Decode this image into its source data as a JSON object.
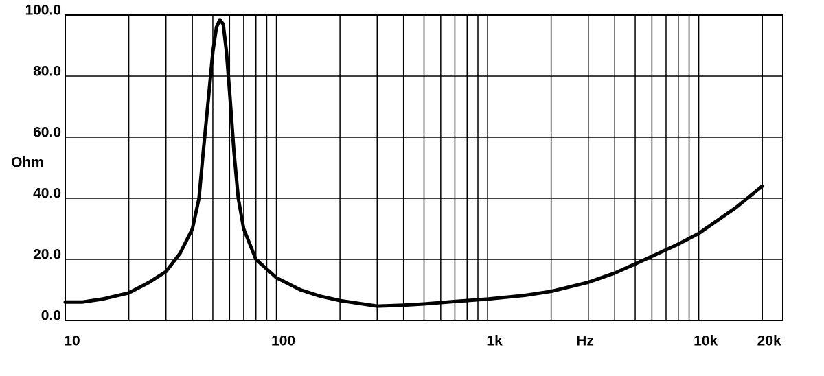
{
  "chart_data": {
    "type": "line",
    "x_label": "Hz",
    "y_label": "Ohm",
    "log_x": true,
    "grid": true,
    "color": "#000000",
    "xlim": [
      10,
      25000
    ],
    "ylim": [
      0,
      100
    ],
    "xticks": [
      {
        "value": 10,
        "label": "10"
      },
      {
        "value": 100,
        "label": "100"
      },
      {
        "value": 1000,
        "label": "1k"
      },
      {
        "value": 10000,
        "label": "10k"
      },
      {
        "value": 20000,
        "label": "20k"
      }
    ],
    "xgrid": [
      20,
      30,
      40,
      50,
      60,
      70,
      80,
      90,
      100,
      200,
      300,
      400,
      500,
      600,
      700,
      800,
      900,
      1000,
      2000,
      3000,
      4000,
      5000,
      6000,
      7000,
      8000,
      9000,
      10000,
      20000
    ],
    "yticks": [
      {
        "value": 0,
        "label": "0.0"
      },
      {
        "value": 20,
        "label": "20.0"
      },
      {
        "value": 40,
        "label": "40.0"
      },
      {
        "value": 60,
        "label": "60.0"
      },
      {
        "value": 80,
        "label": "80.0"
      },
      {
        "value": 100,
        "label": "100.0"
      }
    ],
    "x": [
      10,
      12,
      15,
      20,
      25,
      30,
      35,
      40,
      43,
      45,
      48,
      50,
      52,
      54,
      56,
      58,
      60,
      63,
      66,
      70,
      80,
      100,
      130,
      160,
      200,
      300,
      400,
      500,
      700,
      1000,
      1500,
      2000,
      3000,
      4000,
      5000,
      6000,
      8000,
      10000,
      15000,
      20000
    ],
    "values": [
      6,
      6,
      7,
      9,
      12.5,
      16,
      22,
      30,
      40,
      55,
      75,
      88,
      96,
      98.5,
      97,
      88,
      75,
      55,
      40,
      30,
      20,
      14,
      10,
      8,
      6.5,
      4.7,
      5,
      5.4,
      6.2,
      7,
      8.2,
      9.5,
      12.5,
      15.5,
      18.5,
      21,
      25,
      28.5,
      37,
      44
    ]
  }
}
